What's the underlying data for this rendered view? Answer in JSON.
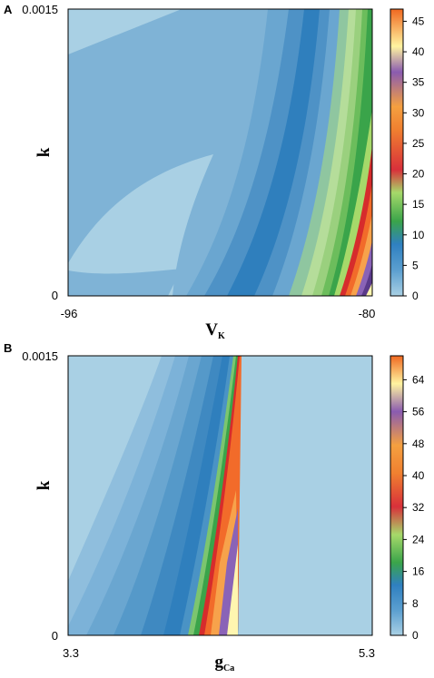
{
  "colors": {
    "band_palette": [
      "#a9d0e4",
      "#8fc0dc",
      "#6faad2",
      "#4f93c4",
      "#2f7fbd",
      "#6ea9d2",
      "#5aa0cf",
      "#9bd18c",
      "#7cc56f",
      "#5fb85a",
      "#3aa44a",
      "#d62c2c",
      "#f26b2a",
      "#f7a24b",
      "#8a63b7",
      "#5a3a8a",
      "#fff6b0"
    ],
    "colorbar_stops": [
      "#a9d0e4",
      "#5b9fd0",
      "#2f80c0",
      "#3aa44a",
      "#a6d96a",
      "#d8303a",
      "#f08030",
      "#f5a040",
      "#8a5bb0",
      "#fff4a0",
      "#f06820"
    ],
    "background": "#a9d0e4"
  },
  "chart_data": [
    {
      "type": "heatmap",
      "panel": "A",
      "xlabel": "V",
      "xlabel_sub": "K",
      "ylabel": "k",
      "x_ticks": [
        "-96",
        "-80"
      ],
      "y_ticks": [
        "0",
        "0.0015"
      ],
      "xlim": [
        -96,
        -80
      ],
      "ylim": [
        0,
        0.0015
      ],
      "colorbar": {
        "range": [
          0,
          47
        ],
        "ticks": [
          "0",
          "5",
          "10",
          "15",
          "20",
          "25",
          "30",
          "35",
          "40",
          "45"
        ],
        "tick_values": [
          0,
          5,
          10,
          15,
          20,
          25,
          30,
          35,
          40,
          45
        ]
      }
    },
    {
      "type": "heatmap",
      "panel": "B",
      "xlabel": "g",
      "xlabel_sub": "Ca",
      "ylabel": "k",
      "x_ticks": [
        "3.3",
        "5.3"
      ],
      "y_ticks": [
        "0",
        "0.0015"
      ],
      "xlim": [
        3.3,
        5.3
      ],
      "ylim": [
        0,
        0.0015
      ],
      "colorbar": {
        "range": [
          0,
          70
        ],
        "ticks": [
          "0",
          "8",
          "16",
          "24",
          "32",
          "40",
          "48",
          "56",
          "64"
        ],
        "tick_values": [
          0,
          8,
          16,
          24,
          32,
          40,
          48,
          56,
          64
        ]
      }
    }
  ]
}
